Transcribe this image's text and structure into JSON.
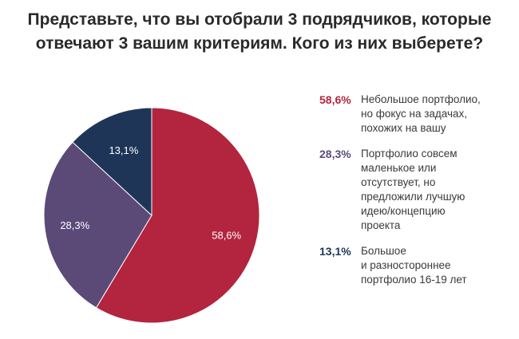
{
  "title": {
    "line1": "Представьте, что вы отобрали 3 подрядчиков, которые",
    "line2": "отвечают 3 вашим критериям. Кого из них выберете?"
  },
  "chart_data": {
    "type": "pie",
    "title": "Представьте, что вы отобрали 3 подрядчиков, которые отвечают 3 вашим критериям. Кого из них выберете?",
    "slices": [
      {
        "label": "Небольшое портфолио, но фокус на задачах, похожих на вашу",
        "value": 58.6,
        "display": "58,6%",
        "color": "#b3243e"
      },
      {
        "label": "Портфолио совсем маленькое или отсутствует, но предложили лучшую идею/концепцию проекта",
        "value": 28.3,
        "display": "28,3%",
        "color": "#5b4a78"
      },
      {
        "label": "Большое и разностороннее портфолио 16-19 лет",
        "value": 13.1,
        "display": "13,1%",
        "color": "#1f3558"
      }
    ],
    "legend_position": "right"
  },
  "legend": [
    {
      "pct": "58,6%",
      "lines": [
        "Небольшое портфолио,",
        "но фокус на задачах,",
        "похожих на вашу"
      ],
      "color": "#b3243e"
    },
    {
      "pct": "28,3%",
      "lines": [
        "Портфолио совсем",
        "маленькое или",
        "отсутствует, но",
        "предложили лучшую",
        "идею/концепцию",
        "проекта"
      ],
      "color": "#5b4a78"
    },
    {
      "pct": "13,1%",
      "lines": [
        "Большое",
        "и разностороннее",
        "портфолио 16-19 лет"
      ],
      "color": "#1f3558"
    }
  ]
}
